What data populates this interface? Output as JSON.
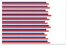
{
  "chart_data": {
    "type": "bar",
    "orientation": "horizontal",
    "categories": [
      null,
      null,
      null,
      null,
      null,
      null,
      null,
      null,
      null,
      null,
      null
    ],
    "series": [
      {
        "color": "#1f3b73",
        "values": [
          70,
          72,
          69,
          73,
          71,
          68,
          74,
          70,
          67,
          69,
          72
        ]
      },
      {
        "color": "#e0474c",
        "values": [
          74,
          76,
          73,
          78,
          75,
          72,
          77,
          74,
          71,
          73,
          76
        ]
      }
    ],
    "xlim": [
      0,
      100
    ],
    "xticks": [
      0,
      25,
      50,
      75,
      100
    ],
    "grid": true,
    "tick_labels": false
  }
}
